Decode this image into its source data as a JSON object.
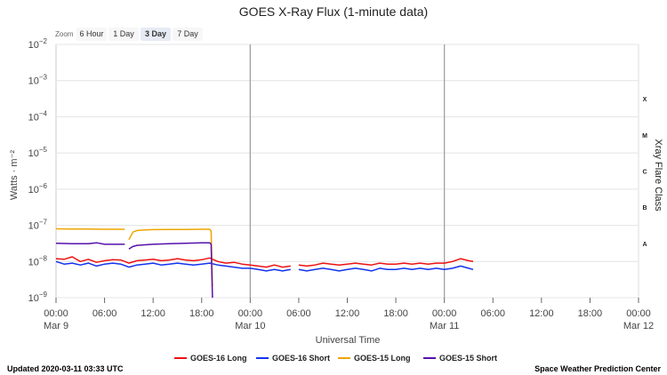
{
  "zoom": {
    "label": "Zoom",
    "buttons": [
      "6 Hour",
      "1 Day",
      "3 Day",
      "7 Day"
    ],
    "active_index": 2
  },
  "footer": {
    "updated": "Updated 2020-03-11 03:33 UTC",
    "credit": "Space Weather Prediction Center"
  },
  "chart_data": {
    "type": "line",
    "title": "GOES X-Ray Flux (1-minute data)",
    "xlabel": "Universal Time",
    "ylabel": "Watts · m⁻²",
    "ylabel_right": "Xray Flare Class",
    "y_scale": "log",
    "ylim": [
      1e-09,
      0.01
    ],
    "y_ticks": [
      {
        "base": "10",
        "exp": "−2",
        "value": 0.01
      },
      {
        "base": "10",
        "exp": "−3",
        "value": 0.001
      },
      {
        "base": "10",
        "exp": "−4",
        "value": 0.0001
      },
      {
        "base": "10",
        "exp": "−5",
        "value": 1e-05
      },
      {
        "base": "10",
        "exp": "−6",
        "value": 1e-06
      },
      {
        "base": "10",
        "exp": "−7",
        "value": 1e-07
      },
      {
        "base": "10",
        "exp": "−8",
        "value": 1e-08
      },
      {
        "base": "10",
        "exp": "−9",
        "value": 1e-09
      }
    ],
    "xlim": [
      "2020-03-09 00:00",
      "2020-03-12 00:00"
    ],
    "x_ticks": [
      {
        "time": "2020-03-09 00:00",
        "label": "00:00",
        "sublabel": "Mar 9"
      },
      {
        "time": "2020-03-09 06:00",
        "label": "06:00",
        "sublabel": ""
      },
      {
        "time": "2020-03-09 12:00",
        "label": "12:00",
        "sublabel": ""
      },
      {
        "time": "2020-03-09 18:00",
        "label": "18:00",
        "sublabel": ""
      },
      {
        "time": "2020-03-10 00:00",
        "label": "00:00",
        "sublabel": "Mar 10"
      },
      {
        "time": "2020-03-10 06:00",
        "label": "06:00",
        "sublabel": ""
      },
      {
        "time": "2020-03-10 12:00",
        "label": "12:00",
        "sublabel": ""
      },
      {
        "time": "2020-03-10 18:00",
        "label": "18:00",
        "sublabel": ""
      },
      {
        "time": "2020-03-11 00:00",
        "label": "00:00",
        "sublabel": "Mar 11"
      },
      {
        "time": "2020-03-11 06:00",
        "label": "06:00",
        "sublabel": ""
      },
      {
        "time": "2020-03-11 12:00",
        "label": "12:00",
        "sublabel": ""
      },
      {
        "time": "2020-03-11 18:00",
        "label": "18:00",
        "sublabel": ""
      },
      {
        "time": "2020-03-12 00:00",
        "label": "00:00",
        "sublabel": "Mar 12"
      }
    ],
    "day_lines": [
      "2020-03-10 00:00",
      "2020-03-11 00:00"
    ],
    "flare_classes": [
      {
        "label": "X",
        "value": 0.0001
      },
      {
        "label": "M",
        "value": 1e-05
      },
      {
        "label": "C",
        "value": 1e-06
      },
      {
        "label": "B",
        "value": 1e-07
      },
      {
        "label": "A",
        "value": 1e-08
      }
    ],
    "legend": {
      "position": "bottom"
    },
    "series": [
      {
        "name": "GOES-16 Long",
        "color": "#ee1111",
        "segments": [
          {
            "x": [
              "2020-03-09 00:00",
              "2020-03-09 01:00",
              "2020-03-09 02:00",
              "2020-03-09 03:00",
              "2020-03-09 04:00",
              "2020-03-09 05:00",
              "2020-03-09 06:00",
              "2020-03-09 07:00",
              "2020-03-09 08:00",
              "2020-03-09 09:00",
              "2020-03-09 10:00",
              "2020-03-09 11:00",
              "2020-03-09 12:00",
              "2020-03-09 13:00",
              "2020-03-09 14:00",
              "2020-03-09 15:00",
              "2020-03-09 16:00",
              "2020-03-09 17:00",
              "2020-03-09 18:00",
              "2020-03-09 19:00",
              "2020-03-09 20:00",
              "2020-03-09 21:00",
              "2020-03-09 22:00",
              "2020-03-09 23:00",
              "2020-03-10 00:00",
              "2020-03-10 01:00",
              "2020-03-10 02:00",
              "2020-03-10 03:00",
              "2020-03-10 04:00",
              "2020-03-10 05:00"
            ],
            "y": [
              1.2e-08,
              1.15e-08,
              1.35e-08,
              1e-08,
              1.15e-08,
              9.5e-09,
              1.05e-08,
              1.12e-08,
              1.1e-08,
              9e-09,
              1.05e-08,
              1.1e-08,
              1.15e-08,
              1.05e-08,
              1.1e-08,
              1.2e-08,
              1.1e-08,
              1.05e-08,
              1.12e-08,
              1.25e-08,
              1e-08,
              9e-09,
              9.5e-09,
              8.5e-09,
              8e-09,
              7.5e-09,
              7e-09,
              8e-09,
              7e-09,
              7.5e-09
            ]
          },
          {
            "x": [
              "2020-03-10 06:00",
              "2020-03-10 07:00",
              "2020-03-10 08:00",
              "2020-03-10 09:00",
              "2020-03-10 10:00",
              "2020-03-10 11:00",
              "2020-03-10 12:00",
              "2020-03-10 13:00",
              "2020-03-10 14:00",
              "2020-03-10 15:00",
              "2020-03-10 16:00",
              "2020-03-10 17:00",
              "2020-03-10 18:00",
              "2020-03-10 19:00",
              "2020-03-10 20:00",
              "2020-03-10 21:00",
              "2020-03-10 22:00",
              "2020-03-10 23:00",
              "2020-03-11 00:00",
              "2020-03-11 01:00",
              "2020-03-11 02:00",
              "2020-03-11 03:00",
              "2020-03-11 03:33"
            ],
            "y": [
              8e-09,
              7.5e-09,
              8e-09,
              9e-09,
              8.5e-09,
              8e-09,
              8.5e-09,
              9e-09,
              8.5e-09,
              8e-09,
              9e-09,
              8.5e-09,
              8.5e-09,
              9e-09,
              8.5e-09,
              9e-09,
              8.5e-09,
              9e-09,
              9e-09,
              1e-08,
              1.2e-08,
              1.05e-08,
              1e-08
            ]
          }
        ]
      },
      {
        "name": "GOES-16 Short",
        "color": "#1133ee",
        "segments": [
          {
            "x": [
              "2020-03-09 00:00",
              "2020-03-09 01:00",
              "2020-03-09 02:00",
              "2020-03-09 03:00",
              "2020-03-09 04:00",
              "2020-03-09 05:00",
              "2020-03-09 06:00",
              "2020-03-09 07:00",
              "2020-03-09 08:00",
              "2020-03-09 09:00",
              "2020-03-09 10:00",
              "2020-03-09 11:00",
              "2020-03-09 12:00",
              "2020-03-09 13:00",
              "2020-03-09 14:00",
              "2020-03-09 15:00",
              "2020-03-09 16:00",
              "2020-03-09 17:00",
              "2020-03-09 18:00",
              "2020-03-09 19:00",
              "2020-03-09 20:00",
              "2020-03-09 21:00",
              "2020-03-09 22:00",
              "2020-03-09 23:00",
              "2020-03-10 00:00",
              "2020-03-10 01:00",
              "2020-03-10 02:00",
              "2020-03-10 03:00",
              "2020-03-10 04:00",
              "2020-03-10 05:00"
            ],
            "y": [
              1e-08,
              8.5e-09,
              9e-09,
              8e-09,
              9e-09,
              7.5e-09,
              8.5e-09,
              9e-09,
              8.5e-09,
              7e-09,
              8e-09,
              8.5e-09,
              9e-09,
              8e-09,
              8.5e-09,
              9e-09,
              8.5e-09,
              8e-09,
              8.5e-09,
              9e-09,
              8e-09,
              7.5e-09,
              7e-09,
              6.5e-09,
              6.5e-09,
              6e-09,
              5.5e-09,
              6e-09,
              5.5e-09,
              6e-09
            ]
          },
          {
            "x": [
              "2020-03-10 06:00",
              "2020-03-10 07:00",
              "2020-03-10 08:00",
              "2020-03-10 09:00",
              "2020-03-10 10:00",
              "2020-03-10 11:00",
              "2020-03-10 12:00",
              "2020-03-10 13:00",
              "2020-03-10 14:00",
              "2020-03-10 15:00",
              "2020-03-10 16:00",
              "2020-03-10 17:00",
              "2020-03-10 18:00",
              "2020-03-10 19:00",
              "2020-03-10 20:00",
              "2020-03-10 21:00",
              "2020-03-10 22:00",
              "2020-03-10 23:00",
              "2020-03-11 00:00",
              "2020-03-11 01:00",
              "2020-03-11 02:00",
              "2020-03-11 03:00",
              "2020-03-11 03:33"
            ],
            "y": [
              6e-09,
              5.5e-09,
              6e-09,
              6.5e-09,
              6e-09,
              5.5e-09,
              6e-09,
              6.5e-09,
              6e-09,
              5.5e-09,
              6.5e-09,
              6e-09,
              6e-09,
              6.5e-09,
              6e-09,
              6.5e-09,
              6e-09,
              6.5e-09,
              6e-09,
              6.5e-09,
              7.5e-09,
              6.5e-09,
              6e-09
            ]
          }
        ]
      },
      {
        "name": "GOES-15 Long",
        "color": "#eea500",
        "segments": [
          {
            "x": [
              "2020-03-09 00:00",
              "2020-03-09 02:00",
              "2020-03-09 04:00",
              "2020-03-09 06:00",
              "2020-03-09 08:00",
              "2020-03-09 08:30"
            ],
            "y": [
              8e-08,
              7.9e-08,
              7.9e-08,
              7.8e-08,
              7.8e-08,
              7.8e-08
            ]
          },
          {
            "x": [
              "2020-03-09 09:00",
              "2020-03-09 09:30",
              "2020-03-09 10:00",
              "2020-03-09 11:00",
              "2020-03-09 12:00",
              "2020-03-09 14:00",
              "2020-03-09 16:00",
              "2020-03-09 18:00",
              "2020-03-09 19:00",
              "2020-03-09 19:10",
              "2020-03-09 19:20"
            ],
            "y": [
              4e-08,
              6.5e-08,
              7.2e-08,
              7.5e-08,
              7.6e-08,
              7.7e-08,
              7.7e-08,
              7.8e-08,
              7.8e-08,
              7e-08,
              2e-09
            ]
          }
        ]
      },
      {
        "name": "GOES-15 Short",
        "color": "#5511aa",
        "segments": [
          {
            "x": [
              "2020-03-09 00:00",
              "2020-03-09 02:00",
              "2020-03-09 04:00",
              "2020-03-09 05:00",
              "2020-03-09 06:00",
              "2020-03-09 07:00",
              "2020-03-09 08:30"
            ],
            "y": [
              3.2e-08,
              3.1e-08,
              3.1e-08,
              3.3e-08,
              3e-08,
              3e-08,
              3e-08
            ]
          },
          {
            "x": [
              "2020-03-09 09:00",
              "2020-03-09 09:30",
              "2020-03-09 10:00",
              "2020-03-09 11:00",
              "2020-03-09 12:00",
              "2020-03-09 14:00",
              "2020-03-09 16:00",
              "2020-03-09 18:00",
              "2020-03-09 19:00",
              "2020-03-09 19:10",
              "2020-03-09 19:20"
            ],
            "y": [
              2.2e-08,
              2.6e-08,
              2.8e-08,
              2.9e-08,
              3e-08,
              3.1e-08,
              3.2e-08,
              3.3e-08,
              3.3e-08,
              3e-08,
              1e-09
            ]
          }
        ]
      }
    ]
  }
}
